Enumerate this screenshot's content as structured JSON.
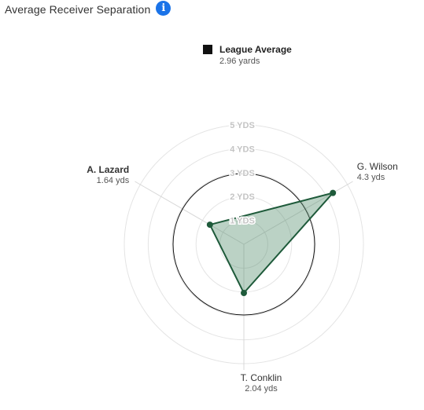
{
  "header": {
    "title": "Average Receiver Separation",
    "info_icon": "info-icon",
    "info_glyph": "i"
  },
  "legend": {
    "name": "League Average",
    "value_text": "2.96 yards"
  },
  "colors": {
    "accent": "#1a73e8",
    "series_line": "#1e5a3a",
    "series_fill": "#4d8a66",
    "league_avg": "#111111",
    "grid": "#e4e4e4",
    "ring_label": "#c4c4c4",
    "spoke": "#d8d8d8",
    "name_text": "#333333",
    "value_text": "#555555"
  },
  "chart_data": {
    "type": "radar",
    "title": "Average Receiver Separation",
    "unit": "YDS",
    "rmax": 5,
    "ring_values": [
      1,
      2,
      3,
      4,
      5
    ],
    "ring_labels": [
      "1 YDS",
      "2 YDS",
      "3 YDS",
      "4 YDS",
      "5 YDS"
    ],
    "league_average": 2.96,
    "players": [
      {
        "name": "A. Lazard",
        "value": 1.64,
        "value_text": "1.64 yds",
        "bold": true
      },
      {
        "name": "G. Wilson",
        "value": 4.3,
        "value_text": "4.3 yds",
        "bold": false
      },
      {
        "name": "T. Conklin",
        "value": 2.04,
        "value_text": "2.04 yds",
        "bold": false
      }
    ]
  }
}
